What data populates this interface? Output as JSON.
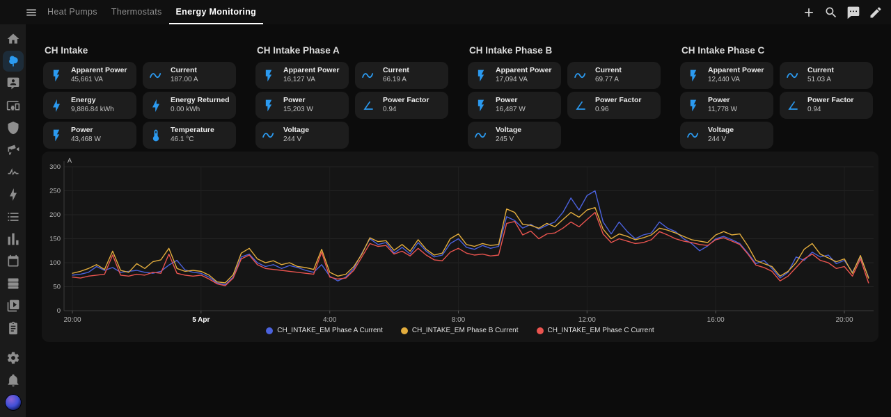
{
  "topbar": {
    "menu_icon": "menu",
    "tabs": [
      {
        "label": "Heat Pumps",
        "active": false
      },
      {
        "label": "Thermostats",
        "active": false
      },
      {
        "label": "Energy Monitoring",
        "active": true
      }
    ],
    "actions": [
      {
        "icon": "plus"
      },
      {
        "icon": "magnify"
      },
      {
        "icon": "chat"
      },
      {
        "icon": "pencil"
      }
    ]
  },
  "sidebar": {
    "main": [
      {
        "icon": "home",
        "active": false
      },
      {
        "icon": "tree",
        "active": true
      },
      {
        "icon": "assist",
        "active": false
      },
      {
        "icon": "devices",
        "active": false
      },
      {
        "icon": "shield",
        "active": false
      },
      {
        "icon": "cctv",
        "active": false
      },
      {
        "icon": "activity",
        "active": false
      },
      {
        "icon": "bolt",
        "active": false
      },
      {
        "icon": "list",
        "active": false
      },
      {
        "icon": "chart",
        "active": false
      },
      {
        "icon": "calendar",
        "active": false
      },
      {
        "icon": "server",
        "active": false
      },
      {
        "icon": "media",
        "active": false
      },
      {
        "icon": "clipboard",
        "active": false
      }
    ],
    "bottom": [
      {
        "icon": "cog"
      },
      {
        "icon": "bell"
      },
      {
        "icon": "avatar"
      }
    ]
  },
  "sections": [
    {
      "title": "CH Intake",
      "cards": [
        {
          "icon": "flash",
          "label": "Apparent Power",
          "value": "45,661 VA"
        },
        {
          "icon": "sine",
          "label": "Current",
          "value": "187.00 A"
        },
        {
          "icon": "bolt",
          "label": "Energy",
          "value": "9,886.84 kWh"
        },
        {
          "icon": "bolt",
          "label": "Energy Returned",
          "value": "0.00 kWh"
        },
        {
          "icon": "flash",
          "label": "Power",
          "value": "43,468 W"
        },
        {
          "icon": "thermometer",
          "label": "Temperature",
          "value": "46.1 °C"
        }
      ]
    },
    {
      "title": "CH Intake Phase A",
      "cards": [
        {
          "icon": "flash",
          "label": "Apparent Power",
          "value": "16,127 VA"
        },
        {
          "icon": "sine",
          "label": "Current",
          "value": "66.19 A"
        },
        {
          "icon": "flash",
          "label": "Power",
          "value": "15,203 W"
        },
        {
          "icon": "angle",
          "label": "Power Factor",
          "value": "0.94"
        },
        {
          "icon": "sine",
          "label": "Voltage",
          "value": "244 V"
        }
      ]
    },
    {
      "title": "CH Intake Phase B",
      "cards": [
        {
          "icon": "flash",
          "label": "Apparent Power",
          "value": "17,094 VA"
        },
        {
          "icon": "sine",
          "label": "Current",
          "value": "69.77 A"
        },
        {
          "icon": "flash",
          "label": "Power",
          "value": "16,487 W"
        },
        {
          "icon": "angle",
          "label": "Power Factor",
          "value": "0.96"
        },
        {
          "icon": "sine",
          "label": "Voltage",
          "value": "245 V"
        }
      ]
    },
    {
      "title": "CH Intake Phase C",
      "cards": [
        {
          "icon": "flash",
          "label": "Apparent Power",
          "value": "12,440 VA"
        },
        {
          "icon": "sine",
          "label": "Current",
          "value": "51.03 A"
        },
        {
          "icon": "flash",
          "label": "Power",
          "value": "11,778 W"
        },
        {
          "icon": "angle",
          "label": "Power Factor",
          "value": "0.94"
        },
        {
          "icon": "sine",
          "label": "Voltage",
          "value": "244 V"
        }
      ]
    }
  ],
  "chart_data": {
    "type": "line",
    "unit": "A",
    "ylim": [
      0,
      300
    ],
    "yticks": [
      0,
      50,
      100,
      150,
      200,
      250,
      300
    ],
    "x_count": 100,
    "x_step_minutes": 15,
    "xticks": [
      {
        "i": 0,
        "label": "20:00",
        "emphasis": false
      },
      {
        "i": 16,
        "label": "5 Apr",
        "emphasis": true
      },
      {
        "i": 32,
        "label": "4:00",
        "emphasis": false
      },
      {
        "i": 48,
        "label": "8:00",
        "emphasis": false
      },
      {
        "i": 64,
        "label": "12:00",
        "emphasis": false
      },
      {
        "i": 80,
        "label": "16:00",
        "emphasis": false
      },
      {
        "i": 96,
        "label": "20:00",
        "emphasis": false
      }
    ],
    "legend_position": "bottom",
    "series": [
      {
        "name": "CH_INTAKE_EM Phase A Current",
        "color": "#4b62dd",
        "values": [
          74,
          76,
          80,
          92,
          84,
          90,
          80,
          82,
          84,
          80,
          78,
          82,
          95,
          105,
          85,
          80,
          78,
          70,
          58,
          54,
          70,
          112,
          118,
          100,
          92,
          96,
          88,
          94,
          90,
          84,
          80,
          96,
          72,
          62,
          70,
          88,
          120,
          150,
          138,
          142,
          120,
          132,
          118,
          142,
          124,
          112,
          116,
          140,
          150,
          132,
          128,
          136,
          130,
          134,
          196,
          188,
          172,
          180,
          170,
          178,
          185,
          205,
          235,
          210,
          240,
          250,
          185,
          160,
          185,
          165,
          150,
          158,
          162,
          185,
          172,
          165,
          150,
          140,
          125,
          135,
          150,
          155,
          148,
          140,
          120,
          98,
          105,
          88,
          68,
          80,
          112,
          105,
          122,
          112,
          116,
          98,
          105,
          80,
          112,
          70
        ]
      },
      {
        "name": "CH_INTAKE_EM Phase B Current",
        "color": "#e3ad3d",
        "values": [
          78,
          82,
          88,
          96,
          86,
          124,
          84,
          80,
          98,
          88,
          102,
          106,
          130,
          88,
          82,
          84,
          82,
          74,
          60,
          58,
          75,
          120,
          130,
          108,
          100,
          104,
          96,
          100,
          92,
          90,
          86,
          128,
          80,
          72,
          76,
          92,
          118,
          152,
          144,
          146,
          126,
          138,
          124,
          148,
          128,
          116,
          120,
          150,
          160,
          138,
          134,
          140,
          136,
          138,
          212,
          205,
          180,
          178,
          172,
          182,
          175,
          190,
          205,
          195,
          210,
          215,
          170,
          150,
          160,
          155,
          148,
          152,
          158,
          172,
          168,
          162,
          155,
          148,
          145,
          142,
          158,
          165,
          158,
          160,
          135,
          105,
          98,
          92,
          72,
          82,
          100,
          128,
          140,
          118,
          110,
          102,
          108,
          78,
          115,
          68
        ]
      },
      {
        "name": "CH_INTAKE_EM Phase C Current",
        "color": "#ea544f",
        "values": [
          70,
          68,
          72,
          74,
          76,
          116,
          74,
          72,
          76,
          74,
          80,
          78,
          118,
          78,
          74,
          72,
          74,
          66,
          56,
          52,
          68,
          108,
          116,
          96,
          88,
          86,
          84,
          82,
          80,
          78,
          76,
          122,
          70,
          66,
          68,
          84,
          112,
          140,
          134,
          136,
          118,
          124,
          114,
          130,
          116,
          106,
          104,
          122,
          130,
          120,
          116,
          118,
          114,
          116,
          182,
          186,
          158,
          166,
          150,
          160,
          162,
          172,
          185,
          175,
          190,
          205,
          160,
          142,
          150,
          145,
          140,
          142,
          148,
          165,
          158,
          150,
          145,
          142,
          138,
          136,
          148,
          152,
          145,
          138,
          118,
          95,
          90,
          82,
          62,
          72,
          90,
          108,
          118,
          105,
          100,
          88,
          92,
          72,
          108,
          58
        ]
      }
    ]
  }
}
